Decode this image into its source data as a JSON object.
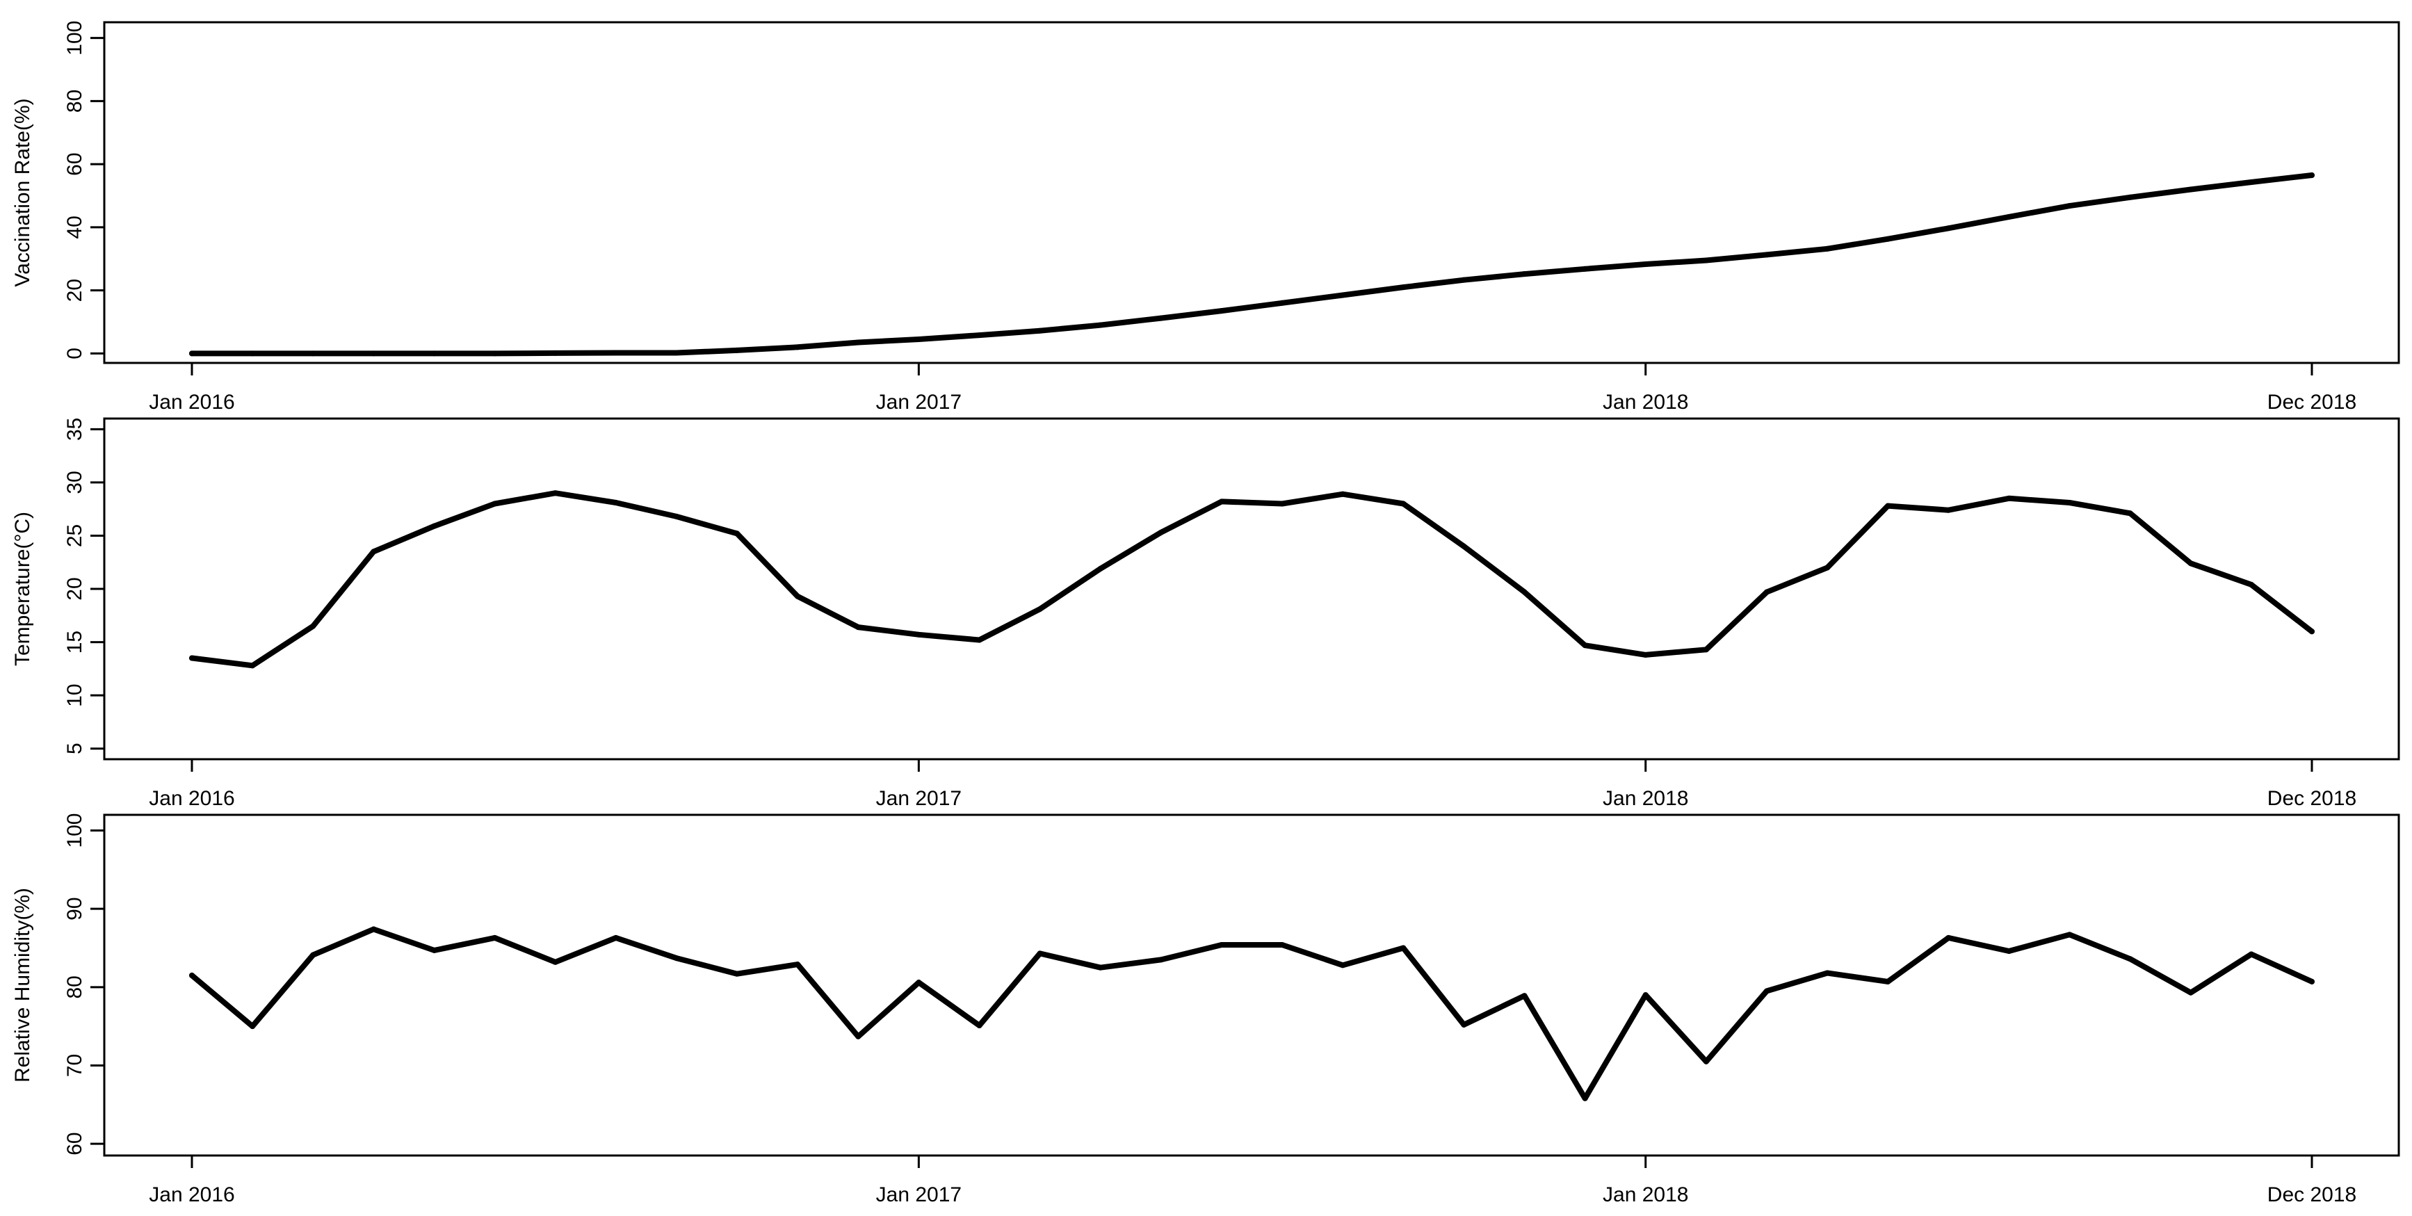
{
  "chart_data": [
    {
      "type": "line",
      "ylabel": "Vaccination Rate(%)",
      "ylim": [
        -3,
        105
      ],
      "yticks": [
        0,
        20,
        40,
        60,
        80,
        100
      ],
      "xticks": [
        "Jan 2016",
        "Jan 2017",
        "Jan 2018",
        "Dec 2018"
      ],
      "x": [
        "2016-01",
        "2016-02",
        "2016-03",
        "2016-04",
        "2016-05",
        "2016-06",
        "2016-07",
        "2016-08",
        "2016-09",
        "2016-10",
        "2016-11",
        "2016-12",
        "2017-01",
        "2017-02",
        "2017-03",
        "2017-04",
        "2017-05",
        "2017-06",
        "2017-07",
        "2017-08",
        "2017-09",
        "2017-10",
        "2017-11",
        "2017-12",
        "2018-01",
        "2018-02",
        "2018-03",
        "2018-04",
        "2018-05",
        "2018-06",
        "2018-07",
        "2018-08",
        "2018-09",
        "2018-10",
        "2018-11",
        "2018-12"
      ],
      "series": [
        {
          "values": [
            0,
            0,
            0,
            0,
            0,
            0,
            0.1,
            0.2,
            0.2,
            1,
            2,
            3.5,
            4.5,
            5.8,
            7.2,
            9,
            11.2,
            13.5,
            16,
            18.5,
            21,
            23.3,
            25.2,
            26.8,
            28.3,
            29.5,
            31.3,
            33.2,
            36.3,
            39.7,
            43.3,
            46.8,
            49.5,
            52,
            54.3,
            56.5
          ]
        }
      ]
    },
    {
      "type": "line",
      "ylabel": "Temperature(°C)",
      "ylim": [
        4,
        36
      ],
      "yticks": [
        5,
        10,
        15,
        20,
        25,
        30,
        35
      ],
      "xticks": [
        "Jan 2016",
        "Jan 2017",
        "Jan 2018",
        "Dec 2018"
      ],
      "x": [
        "2016-01",
        "2016-02",
        "2016-03",
        "2016-04",
        "2016-05",
        "2016-06",
        "2016-07",
        "2016-08",
        "2016-09",
        "2016-10",
        "2016-11",
        "2016-12",
        "2017-01",
        "2017-02",
        "2017-03",
        "2017-04",
        "2017-05",
        "2017-06",
        "2017-07",
        "2017-08",
        "2017-09",
        "2017-10",
        "2017-11",
        "2017-12",
        "2018-01",
        "2018-02",
        "2018-03",
        "2018-04",
        "2018-05",
        "2018-06",
        "2018-07",
        "2018-08",
        "2018-09",
        "2018-10",
        "2018-11",
        "2018-12"
      ],
      "series": [
        {
          "values": [
            13.5,
            12.8,
            16.5,
            23.5,
            25.9,
            28,
            29,
            28.1,
            26.8,
            25.2,
            19.3,
            16.4,
            15.7,
            15.2,
            18.1,
            21.9,
            25.3,
            28.2,
            28,
            28.9,
            28,
            24,
            19.7,
            14.7,
            13.8,
            14.3,
            19.7,
            22,
            27.8,
            27.4,
            28.5,
            28.1,
            27.1,
            22.4,
            20.4,
            16
          ]
        }
      ]
    },
    {
      "type": "line",
      "ylabel": "Relative Humidity(%)",
      "ylim": [
        58.5,
        102
      ],
      "yticks": [
        60,
        70,
        80,
        90,
        100
      ],
      "xticks": [
        "Jan 2016",
        "Jan 2017",
        "Jan 2018",
        "Dec 2018"
      ],
      "x": [
        "2016-01",
        "2016-02",
        "2016-03",
        "2016-04",
        "2016-05",
        "2016-06",
        "2016-07",
        "2016-08",
        "2016-09",
        "2016-10",
        "2016-11",
        "2016-12",
        "2017-01",
        "2017-02",
        "2017-03",
        "2017-04",
        "2017-05",
        "2017-06",
        "2017-07",
        "2017-08",
        "2017-09",
        "2017-10",
        "2017-11",
        "2017-12",
        "2018-01",
        "2018-02",
        "2018-03",
        "2018-04",
        "2018-05",
        "2018-06",
        "2018-07",
        "2018-08",
        "2018-09",
        "2018-10",
        "2018-11",
        "2018-12"
      ],
      "series": [
        {
          "values": [
            81.5,
            75,
            84.1,
            87.4,
            84.7,
            86.3,
            83.2,
            86.3,
            83.7,
            81.7,
            82.9,
            73.7,
            80.6,
            75.1,
            84.3,
            82.5,
            83.5,
            85.4,
            85.4,
            82.8,
            85,
            75.2,
            78.9,
            65.8,
            79,
            70.5,
            79.5,
            81.8,
            80.7,
            86.3,
            84.6,
            86.7,
            83.6,
            79.3,
            84.2,
            80.7
          ]
        }
      ]
    }
  ]
}
